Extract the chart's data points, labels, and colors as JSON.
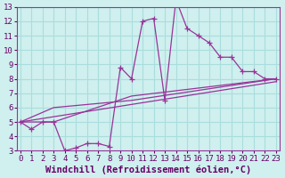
{
  "xlabel": "Windchill (Refroidissement éolien,°C)",
  "background_color": "#cff0ee",
  "grid_color": "#aadddd",
  "line_color": "#993399",
  "xlim": [
    -0.3,
    23.3
  ],
  "ylim": [
    3,
    13
  ],
  "xticks": [
    0,
    1,
    2,
    3,
    4,
    5,
    6,
    7,
    8,
    9,
    10,
    11,
    12,
    13,
    14,
    15,
    16,
    17,
    18,
    19,
    20,
    21,
    22,
    23
  ],
  "yticks": [
    3,
    4,
    5,
    6,
    7,
    8,
    9,
    10,
    11,
    12,
    13
  ],
  "series1_x": [
    0,
    1,
    2,
    3,
    4,
    5,
    6,
    7,
    8,
    9,
    10,
    11,
    12,
    13,
    14,
    15,
    16,
    17,
    18,
    19,
    20,
    21,
    22,
    23
  ],
  "series1_y": [
    5,
    4.5,
    5,
    5,
    3.0,
    3.2,
    3.5,
    3.5,
    3.3,
    8.8,
    8.0,
    12.0,
    12.2,
    6.5,
    13.5,
    11.5,
    11.0,
    10.5,
    9.5,
    9.5,
    8.5,
    8.5,
    8.0,
    8.0
  ],
  "series2_x": [
    0,
    3,
    10,
    23
  ],
  "series2_y": [
    5.0,
    5.0,
    6.8,
    8.0
  ],
  "series3_x": [
    0,
    3,
    10,
    23
  ],
  "series3_y": [
    5.0,
    6.0,
    6.5,
    8.0
  ],
  "series4_x": [
    0,
    23
  ],
  "series4_y": [
    5.0,
    7.8
  ],
  "tick_fontsize": 6.5,
  "label_fontsize": 7.5
}
